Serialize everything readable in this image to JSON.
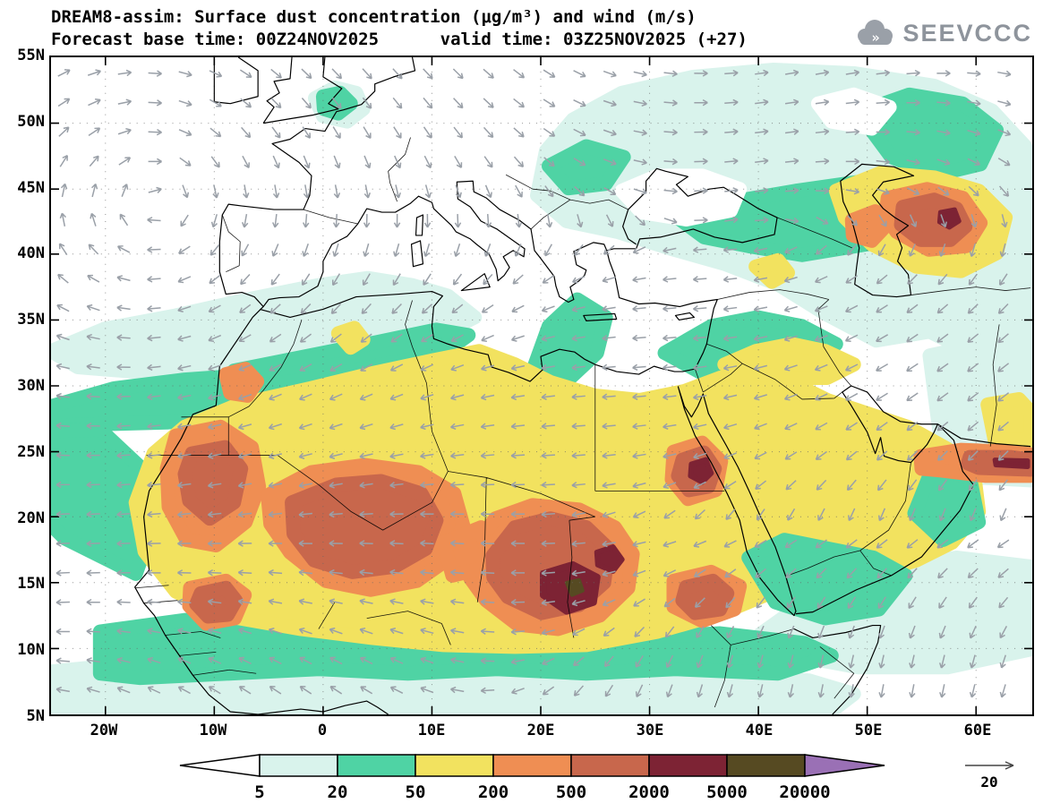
{
  "header": {
    "title_line1": "DREAM8-assim: Surface dust concentration (μg/m³) and wind (m/s)",
    "title_line2": "Forecast base time: 00Z24NOV2025      valid time: 03Z25NOV2025 (+27)"
  },
  "logo": {
    "text": "SEEVCCC",
    "chevrons": "»"
  },
  "axes": {
    "lat_ticks": [
      "55N",
      "50N",
      "45N",
      "40N",
      "35N",
      "30N",
      "25N",
      "20N",
      "15N",
      "10N",
      "5N"
    ],
    "lon_ticks": [
      "20W",
      "10W",
      "0",
      "10E",
      "20E",
      "30E",
      "40E",
      "50E",
      "60E"
    ]
  },
  "colorbar": {
    "labels": [
      "5",
      "20",
      "50",
      "200",
      "500",
      "2000",
      "5000",
      "20000"
    ]
  },
  "wind_reference": {
    "label": "20"
  },
  "chart_data": {
    "type": "heatmap",
    "title": "DREAM8-assim: Surface dust concentration (μg/m³) and wind (m/s)",
    "variable": "Surface dust concentration",
    "units": "μg/m³",
    "wind_units": "m/s",
    "forecast_base_time": "00Z24NOV2025",
    "valid_time": "03Z25NOV2025",
    "forecast_step": "+27",
    "x_axis": {
      "label": "longitude",
      "ticks": [
        "20W",
        "10W",
        "0",
        "10E",
        "20E",
        "30E",
        "40E",
        "50E",
        "60E"
      ],
      "range_deg": [
        -25,
        65
      ]
    },
    "y_axis": {
      "label": "latitude",
      "ticks": [
        "55N",
        "50N",
        "45N",
        "40N",
        "35N",
        "30N",
        "25N",
        "20N",
        "15N",
        "10N",
        "5N"
      ],
      "range_deg": [
        5,
        55
      ]
    },
    "contour_levels_ug_m3": [
      5,
      20,
      50,
      200,
      500,
      2000,
      5000,
      20000
    ],
    "level_colors": [
      "#ffffff",
      "#d9f3ec",
      "#4fd3a4",
      "#f2e25f",
      "#ef8e53",
      "#c8674c",
      "#7d2334",
      "#564a22",
      "#9a70b5"
    ],
    "wind_color": "#9aa0a8",
    "wind_reference_ms": 20,
    "features": [
      "Dust maximum 2000-5000 μg/m³ over the Bodélé region of Chad (~18N, 17-19E) with a tiny core above 5000 μg/m³",
      "500-2000 μg/m³ plumes over Mauritania/Western Sahara, Mali/southern Algeria, Niger/Chad, Sudan, Senegal and upper Egypt (~26N, 30E)",
      "50-200 μg/m³ (yellow) covering most of the Sahara and the Arabian Peninsula",
      "Secondary dust area 200-2000 μg/m³ around the Caspian/Caucasus region (~43-47N, 46-55E)",
      "Elevated dust streak (500-5000 μg/m³) along the Gulf of Oman coast near 26N, 55-65E",
      "20-50 μg/m³ band over the subtropical Atlantic near 28-32N and along the Sahel near 9-13N",
      "Anticyclonic wind gyre over the northeast Atlantic; easterly winds over the Sahel"
    ]
  }
}
